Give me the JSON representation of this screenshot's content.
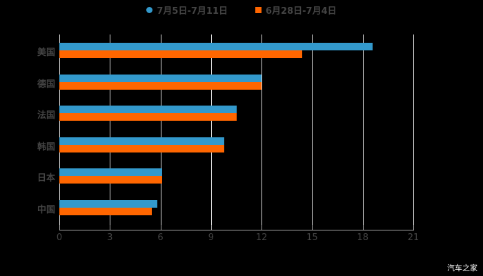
{
  "chart_data": {
    "type": "bar",
    "orientation": "horizontal",
    "title": "",
    "xlabel": "",
    "ylabel": "",
    "categories": [
      "美国",
      "德国",
      "法国",
      "韩国",
      "日本",
      "中国"
    ],
    "series": [
      {
        "name": "7月5日-7月11日",
        "color": "#3399cc",
        "values": [
          18.6,
          12.0,
          10.5,
          9.8,
          6.1,
          5.8
        ]
      },
      {
        "name": "6月28日-7月4日",
        "color": "#ff6600",
        "values": [
          14.4,
          12.0,
          10.5,
          9.8,
          6.1,
          5.5
        ]
      }
    ],
    "xlim": [
      0,
      21
    ],
    "x_ticks": [
      "0",
      "3",
      "6",
      "9",
      "12",
      "15",
      "18",
      "21"
    ],
    "grid": true,
    "legend_position": "top"
  },
  "legend": [
    {
      "label": "7月5日-7月11日",
      "color": "#3399cc",
      "shape": "circle"
    },
    {
      "label": "6月28日-7月4日",
      "color": "#ff6600",
      "shape": "square"
    }
  ],
  "watermark": "汽车之家"
}
